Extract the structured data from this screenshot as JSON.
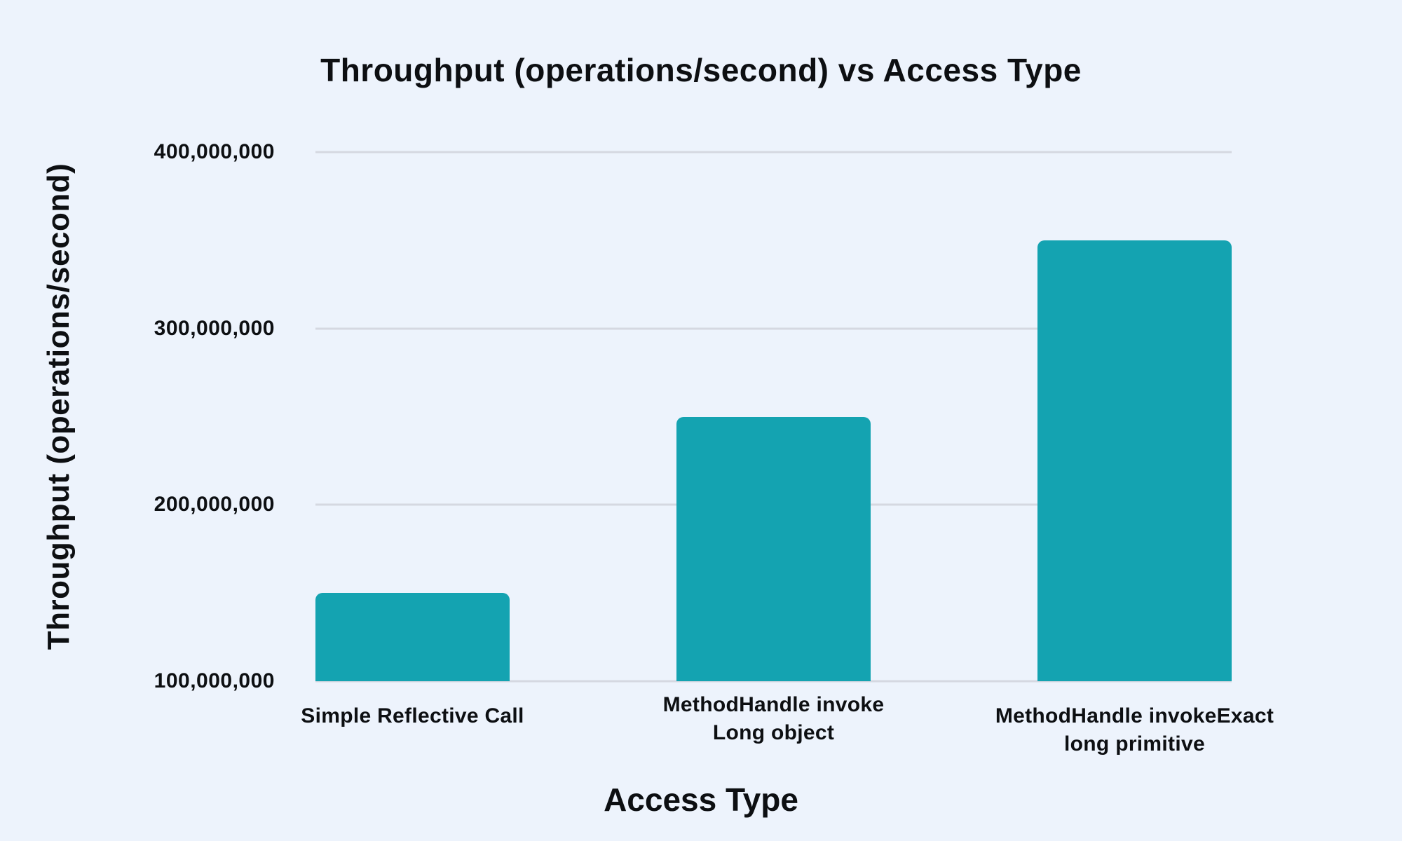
{
  "chart_data": {
    "type": "bar",
    "title": "Throughput (operations/second) vs Access Type",
    "xlabel": "Access Type",
    "ylabel": "Throughput (operations/second)",
    "categories": [
      "Simple Reflective Call",
      "MethodHandle invoke Long object",
      "MethodHandle invokeExact long primitive"
    ],
    "category_lines": [
      [
        "Simple Reflective Call"
      ],
      [
        "MethodHandle invoke",
        "Long object"
      ],
      [
        "MethodHandle invokeExact",
        "long primitive"
      ]
    ],
    "values": [
      150000000,
      250000000,
      350000000
    ],
    "ylim": [
      100000000,
      400000000
    ],
    "ytick_labels": [
      "400,000,000",
      "300,000,000",
      "200,000,000",
      "100,000,000"
    ],
    "grid": "horizontal",
    "legend": "none",
    "colors": {
      "background": "#EDF3FC",
      "bar": "#14A3B1",
      "gridline": "#D5D8E1",
      "text": "#0D0F12"
    }
  }
}
